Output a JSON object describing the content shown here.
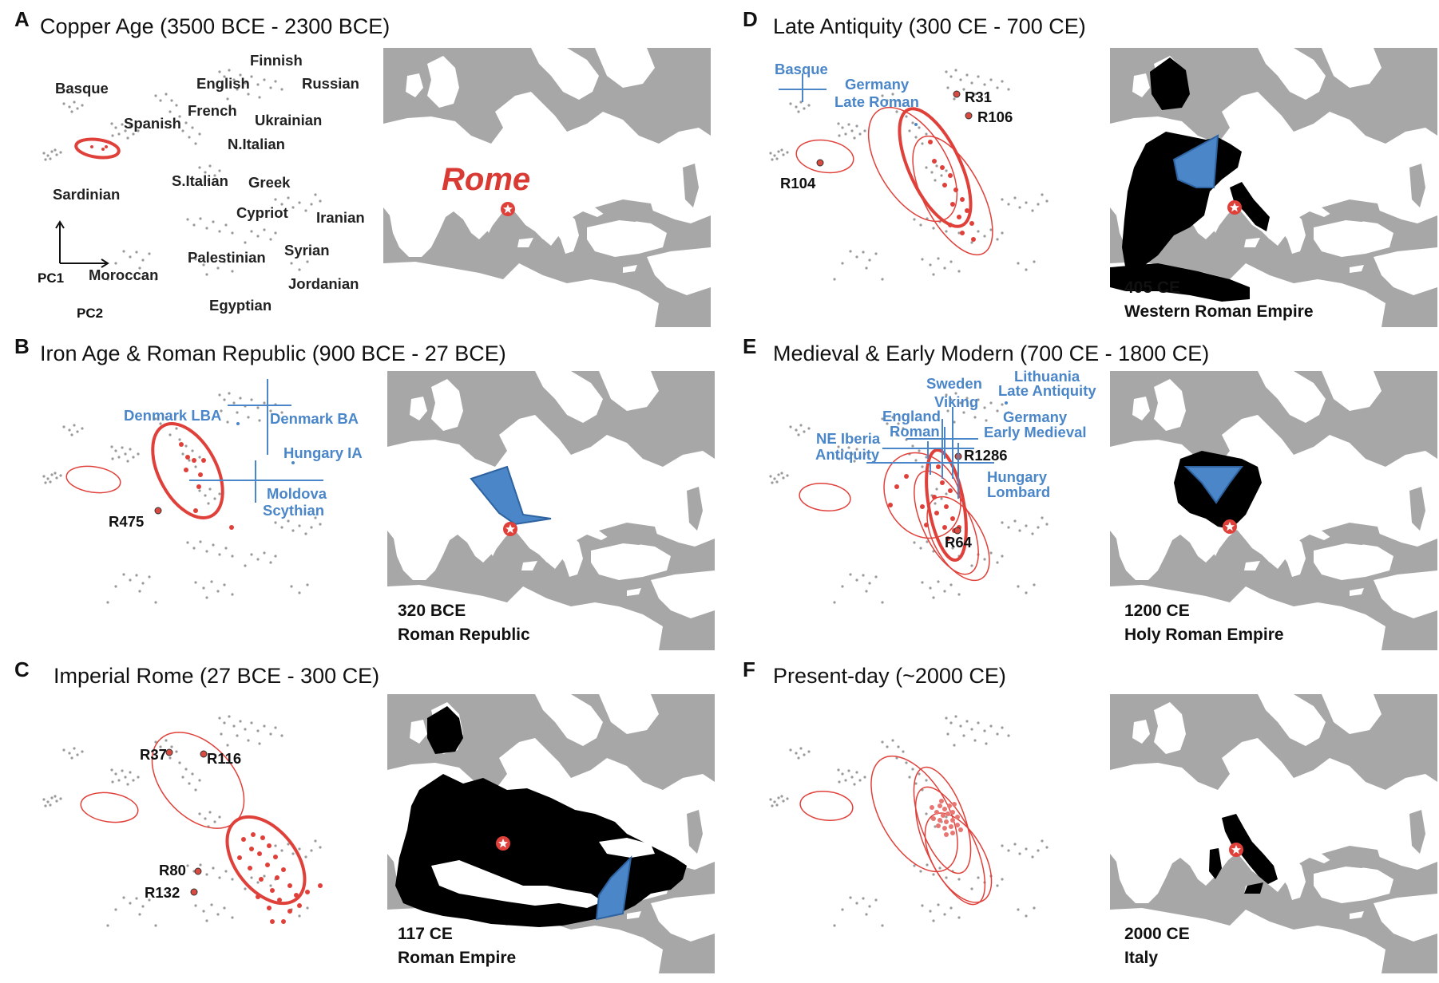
{
  "panels": [
    {
      "id": "A",
      "letter": "A",
      "title": "Copper Age (3500 BCE - 2300 BCE)",
      "map": {
        "caption1": "",
        "caption2": "",
        "rome_label": "Rome"
      },
      "pop_labels": [
        "Finnish",
        "English",
        "Russian",
        "Basque",
        "French",
        "Ukrainian",
        "Spanish",
        "N.Italian",
        "Sardinian",
        "S.Italian",
        "Greek",
        "Cypriot",
        "Iranian",
        "Syrian",
        "Palestinian",
        "Moroccan",
        "Jordanian",
        "Egyptian"
      ],
      "axis": {
        "pc1": "PC1",
        "pc2": "PC2"
      }
    },
    {
      "id": "B",
      "letter": "B",
      "title": "Iron Age & Roman Republic (900 BCE - 27 BCE)",
      "map": {
        "caption1": "320 BCE",
        "caption2": "Roman Republic"
      },
      "refs": [
        "Denmark LBA",
        "Denmark BA",
        "Hungary IA",
        "Moldova",
        "Scythian"
      ],
      "samples": [
        "R475"
      ]
    },
    {
      "id": "C",
      "letter": "C",
      "title": "Imperial Rome (27 BCE - 300 CE)",
      "map": {
        "caption1": "117 CE",
        "caption2": "Roman Empire"
      },
      "samples": [
        "R37",
        "R116",
        "R80",
        "R132"
      ]
    },
    {
      "id": "D",
      "letter": "D",
      "title": "Late Antiquity  (300 CE - 700 CE)",
      "map": {
        "caption1": "405 CE",
        "caption2": "Western Roman Empire"
      },
      "refs": [
        "Basque",
        "Germany",
        "Late Roman"
      ],
      "samples": [
        "R31",
        "R106",
        "R104"
      ]
    },
    {
      "id": "E",
      "letter": "E",
      "title": "Medieval & Early Modern (700 CE - 1800 CE)",
      "map": {
        "caption1": "1200 CE",
        "caption2": "Holy Roman Empire"
      },
      "refs": [
        "Sweden",
        "Viking",
        "Lithuania",
        "Late Antiquity",
        "England",
        "Roman",
        "Germany",
        "Early Medieval",
        "NE Iberia",
        "Antiquity",
        "Hungary",
        "Lombard"
      ],
      "samples": [
        "R1286",
        "R64"
      ]
    },
    {
      "id": "F",
      "letter": "F",
      "title": "Present-day (~2000 CE)",
      "map": {
        "caption1": "2000 CE",
        "caption2": "Italy"
      }
    }
  ],
  "colors": {
    "red": "#e0403a",
    "blue": "#4a86c8",
    "grey_dot": "#9a9a9a",
    "sea": "#a7a7a7",
    "land": "#ffffff",
    "empire": "#000000"
  }
}
